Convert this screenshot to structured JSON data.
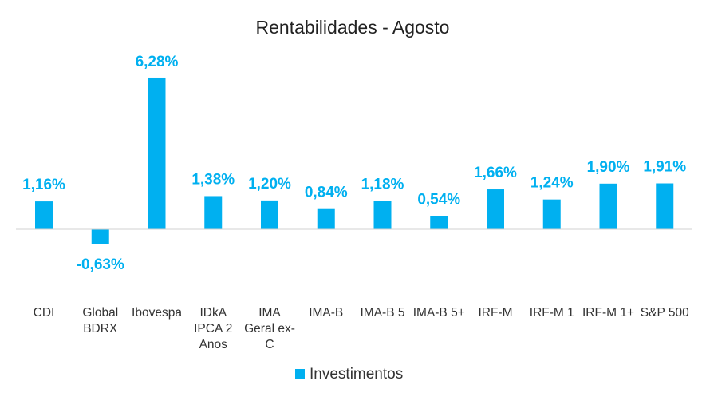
{
  "chart_data": {
    "type": "bar",
    "title": "Rentabilidades - Agosto",
    "xlabel": "",
    "ylabel": "",
    "categories": [
      [
        "CDI"
      ],
      [
        "Global",
        "BDRX"
      ],
      [
        "Ibovespa"
      ],
      [
        "IDkA",
        "IPCA 2",
        "Anos"
      ],
      [
        "IMA",
        "Geral ex-",
        "C"
      ],
      [
        "IMA-B"
      ],
      [
        "IMA-B 5"
      ],
      [
        "IMA-B 5+"
      ],
      [
        "IRF-M"
      ],
      [
        "IRF-M 1"
      ],
      [
        "IRF-M 1+"
      ],
      [
        "S&P 500"
      ]
    ],
    "series": [
      {
        "name": "Investimentos",
        "color": "#00B0F0",
        "values": [
          1.16,
          -0.63,
          6.28,
          1.38,
          1.2,
          0.84,
          1.18,
          0.54,
          1.66,
          1.24,
          1.9,
          1.91
        ],
        "labels": [
          "1,16%",
          "-0,63%",
          "6,28%",
          "1,38%",
          "1,20%",
          "0,84%",
          "1,18%",
          "0,54%",
          "1,66%",
          "1,24%",
          "1,90%",
          "1,91%"
        ]
      }
    ],
    "legend": {
      "position": "bottom",
      "label": "Investimentos"
    },
    "grid": false
  }
}
